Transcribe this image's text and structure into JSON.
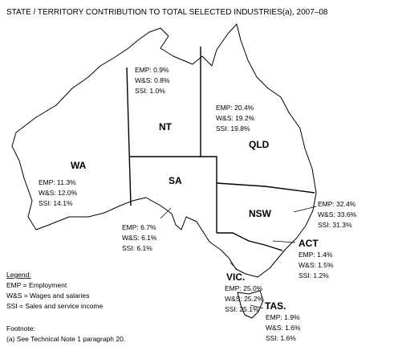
{
  "title": "STATE / TERRITORY CONTRIBUTION TO TOTAL SELECTED INDUSTRIES(a),  2007–08",
  "states": [
    {
      "name": "NT",
      "lines": [
        "EMP: 0.9%",
        "W&S: 0.8%",
        "SSI: 1.0%"
      ]
    },
    {
      "name": "QLD",
      "lines": [
        "EMP: 20.4%",
        "W&S: 19.2%",
        "SSI: 19.8%"
      ]
    },
    {
      "name": "WA",
      "lines": [
        "EMP: 11.3%",
        "W&S: 12.0%",
        "SSI: 14.1%"
      ]
    },
    {
      "name": "SA",
      "lines": [
        "EMP: 6.7%",
        "W&S: 6.1%",
        "SSI: 6.1%"
      ]
    },
    {
      "name": "NSW",
      "lines": [
        "EMP: 32.4%",
        "W&S: 33.6%",
        "SSI: 31.3%"
      ]
    },
    {
      "name": "ACT",
      "lines": [
        "EMP: 1.4%",
        "W&S: 1.5%",
        "SSI: 1.2%"
      ]
    },
    {
      "name": "VIC.",
      "lines": [
        "EMP: 25.0%",
        "W&S: 25.2%",
        "SSI: 25.1%"
      ]
    },
    {
      "name": "TAS.",
      "lines": [
        "EMP: 1.9%",
        "W&S: 1.6%",
        "SSI: 1.6%"
      ]
    }
  ],
  "legend": {
    "heading": "Legend:",
    "items": [
      "EMP = Employment",
      "W&S = Wages and salaries",
      "SSI = Sales and service income"
    ]
  },
  "footnote": {
    "heading": "Footnote:",
    "text": "(a) See Technical Note 1 paragraph 20."
  }
}
